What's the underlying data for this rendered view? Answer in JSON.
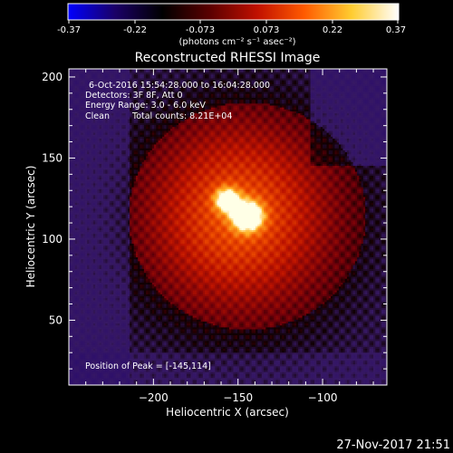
{
  "colorbar": {
    "ticks": [
      "-0.37",
      "-0.22",
      "-0.073",
      "0.073",
      "0.22",
      "0.37"
    ],
    "unit_label": "(photons cm⁻² s⁻¹ asec⁻²)",
    "colors": [
      "#0000ff",
      "#1a0066",
      "#000000",
      "#5a0000",
      "#c01000",
      "#ff5a00",
      "#ffcc30",
      "#ffffff"
    ]
  },
  "chart_data": {
    "type": "heatmap",
    "title": "Reconstructed RHESSI Image",
    "xlabel": "Heliocentric X (arcsec)",
    "ylabel": "Heliocentric Y (arcsec)",
    "xlim": [
      -250,
      -62
    ],
    "ylim": [
      10,
      205
    ],
    "xticks": [
      -200,
      -150,
      -100
    ],
    "yticks": [
      50,
      100,
      150,
      200
    ],
    "xtick_labels": [
      "−200",
      "−150",
      "−100"
    ],
    "ytick_labels": [
      "50",
      "100",
      "150",
      "200"
    ],
    "value_range": [
      -0.37,
      0.37
    ],
    "peak": [
      -145,
      114
    ],
    "secondary_source": [
      -157,
      124
    ]
  },
  "annotations": {
    "time_range": "6-Oct-2016 15:54:28.000 to 16:04:28.000",
    "detectors": "Detectors: 3F 8F, Att 0",
    "energy": "Energy Range: 3.0 - 6.0 keV",
    "method": "Clean",
    "total_counts": "Total counts: 8.21E+04",
    "peak_text": "Position of Peak = [-145,114]"
  },
  "footer": {
    "date": "27-Nov-2017 21:51"
  }
}
